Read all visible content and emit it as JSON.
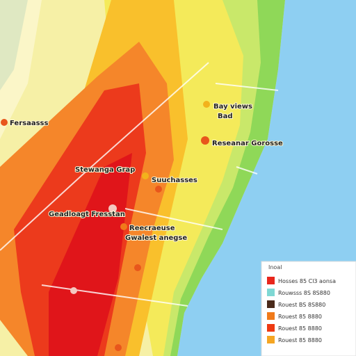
{
  "map": {
    "labels": [
      "Fersaasss",
      "Bay views",
      "Bad",
      "Reseanar Gorosse",
      "Stewanga Grap",
      "Suuchasses",
      "Geadloagt Fresstan",
      "Reecraeuse",
      "Gwalest anegse"
    ],
    "legend": {
      "title": "Inoal",
      "items": [
        {
          "label": "Hosses 85 Cl3 aonsa",
          "color": "#e8261c"
        },
        {
          "label": "Rouwsss 8S 8S880",
          "color": "#7fd8d4"
        },
        {
          "label": "Rouest BS 8S880",
          "color": "#4a2a1a"
        },
        {
          "label": "Rouest 85 8880",
          "color": "#f07a1a"
        },
        {
          "label": "Rouest 85 8880",
          "color": "#ee3a12"
        },
        {
          "label": "Rouest 85 8880",
          "color": "#f5a623"
        }
      ]
    }
  }
}
